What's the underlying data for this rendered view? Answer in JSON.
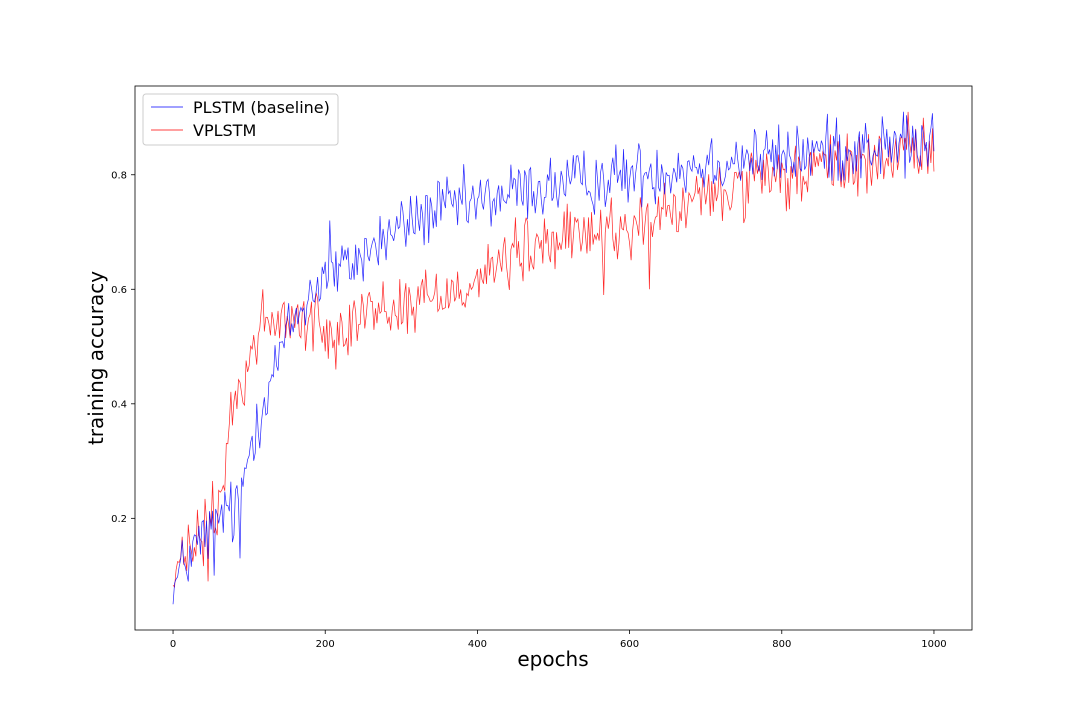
{
  "chart_data": {
    "type": "line",
    "xlabel": "epochs",
    "ylabel": "training accuracy",
    "xlim": [
      -50,
      1050
    ],
    "ylim": [
      0.005,
      0.955
    ],
    "xticks": [
      0,
      200,
      400,
      600,
      800,
      1000
    ],
    "yticks": [
      0.2,
      0.4,
      0.6,
      0.8
    ],
    "legend_position": "top-left",
    "grid": false,
    "series": [
      {
        "name": "PLSTM (baseline)",
        "color": "#0000ff",
        "control_points": [
          [
            0,
            0.07
          ],
          [
            10,
            0.11
          ],
          [
            30,
            0.15
          ],
          [
            50,
            0.18
          ],
          [
            70,
            0.22
          ],
          [
            80,
            0.2
          ],
          [
            90,
            0.25
          ],
          [
            100,
            0.32
          ],
          [
            110,
            0.37
          ],
          [
            130,
            0.45
          ],
          [
            150,
            0.52
          ],
          [
            170,
            0.57
          ],
          [
            190,
            0.61
          ],
          [
            200,
            0.63
          ],
          [
            220,
            0.63
          ],
          [
            250,
            0.66
          ],
          [
            300,
            0.71
          ],
          [
            350,
            0.74
          ],
          [
            400,
            0.75
          ],
          [
            450,
            0.77
          ],
          [
            500,
            0.78
          ],
          [
            550,
            0.79
          ],
          [
            600,
            0.8
          ],
          [
            650,
            0.81
          ],
          [
            700,
            0.82
          ],
          [
            750,
            0.83
          ],
          [
            800,
            0.83
          ],
          [
            850,
            0.84
          ],
          [
            900,
            0.845
          ],
          [
            950,
            0.85
          ],
          [
            1000,
            0.85
          ]
        ],
        "noise": 0.028,
        "spikes": [
          [
            960,
            0.91
          ],
          [
            872,
            0.9
          ],
          [
            205,
            0.72
          ],
          [
            88,
            0.13
          ],
          [
            53,
            0.1
          ],
          [
            0,
            0.05
          ]
        ]
      },
      {
        "name": "VPLSTM",
        "color": "#ff0000",
        "control_points": [
          [
            0,
            0.09
          ],
          [
            20,
            0.14
          ],
          [
            40,
            0.17
          ],
          [
            60,
            0.22
          ],
          [
            70,
            0.3
          ],
          [
            80,
            0.4
          ],
          [
            100,
            0.48
          ],
          [
            120,
            0.53
          ],
          [
            140,
            0.54
          ],
          [
            160,
            0.55
          ],
          [
            180,
            0.55
          ],
          [
            200,
            0.52
          ],
          [
            220,
            0.54
          ],
          [
            250,
            0.56
          ],
          [
            300,
            0.57
          ],
          [
            350,
            0.59
          ],
          [
            400,
            0.62
          ],
          [
            450,
            0.66
          ],
          [
            500,
            0.68
          ],
          [
            550,
            0.7
          ],
          [
            600,
            0.71
          ],
          [
            650,
            0.73
          ],
          [
            700,
            0.76
          ],
          [
            750,
            0.78
          ],
          [
            800,
            0.79
          ],
          [
            850,
            0.81
          ],
          [
            900,
            0.82
          ],
          [
            950,
            0.83
          ],
          [
            1000,
            0.84
          ]
        ],
        "noise": 0.028,
        "spikes": [
          [
            625,
            0.6
          ],
          [
            565,
            0.59
          ],
          [
            46,
            0.09
          ],
          [
            118,
            0.6
          ],
          [
            975,
            0.88
          ]
        ]
      }
    ]
  }
}
